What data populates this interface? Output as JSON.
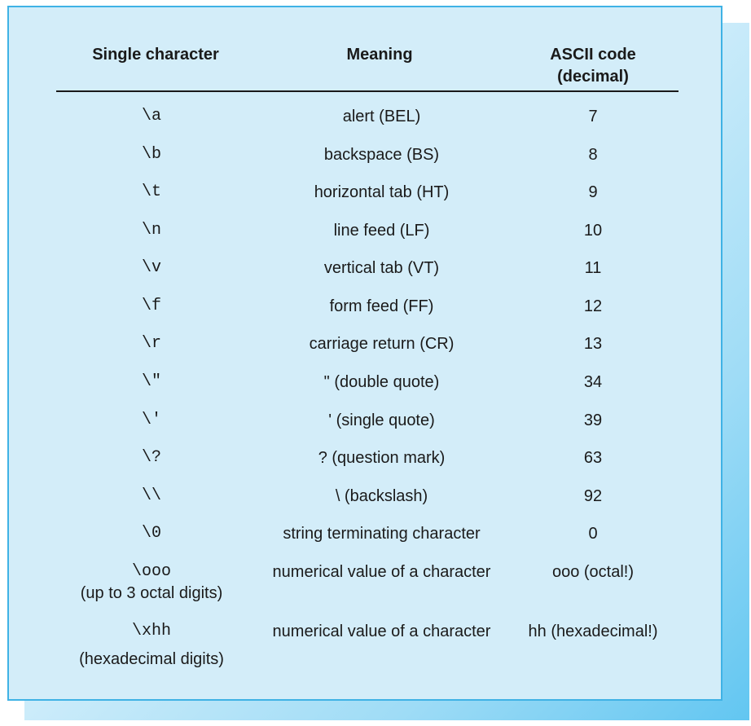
{
  "table": {
    "headers": {
      "col1": "Single character",
      "col2": "Meaning",
      "col3_line1": "ASCII code",
      "col3_line2": "(decimal)"
    },
    "rows": [
      {
        "char": "\\a",
        "meaning": "alert (BEL)",
        "code": "7"
      },
      {
        "char": "\\b",
        "meaning": "backspace (BS)",
        "code": "8"
      },
      {
        "char": "\\t",
        "meaning": "horizontal tab (HT)",
        "code": "9"
      },
      {
        "char": "\\n",
        "meaning": "line feed (LF)",
        "code": "10"
      },
      {
        "char": "\\v",
        "meaning": "vertical tab (VT)",
        "code": "11"
      },
      {
        "char": "\\f",
        "meaning": "form feed (FF)",
        "code": "12"
      },
      {
        "char": "\\r",
        "meaning": "carriage return (CR)",
        "code": "13"
      },
      {
        "char": "\\\"",
        "meaning": "\" (double quote)",
        "code": "34"
      },
      {
        "char": "\\'",
        "meaning": "' (single quote)",
        "code": "39"
      },
      {
        "char": "\\?",
        "meaning": "? (question mark)",
        "code": "63"
      },
      {
        "char": "\\\\",
        "meaning": "\\ (backslash)",
        "code": "92"
      },
      {
        "char": "\\0",
        "meaning": "string terminating character",
        "code": "0"
      },
      {
        "char": "\\ooo",
        "note": "(up to 3 octal digits)",
        "meaning": "numerical value of a character",
        "code": "ooo (octal!)"
      },
      {
        "char": "\\xhh",
        "note": "(hexadecimal digits)",
        "meaning": "numerical value of a character",
        "code": "hh (hexadecimal!)"
      }
    ]
  },
  "colors": {
    "panel_bg": "#d3edf9",
    "panel_border": "#3fb2e5",
    "shadow": "#62c6f1"
  }
}
